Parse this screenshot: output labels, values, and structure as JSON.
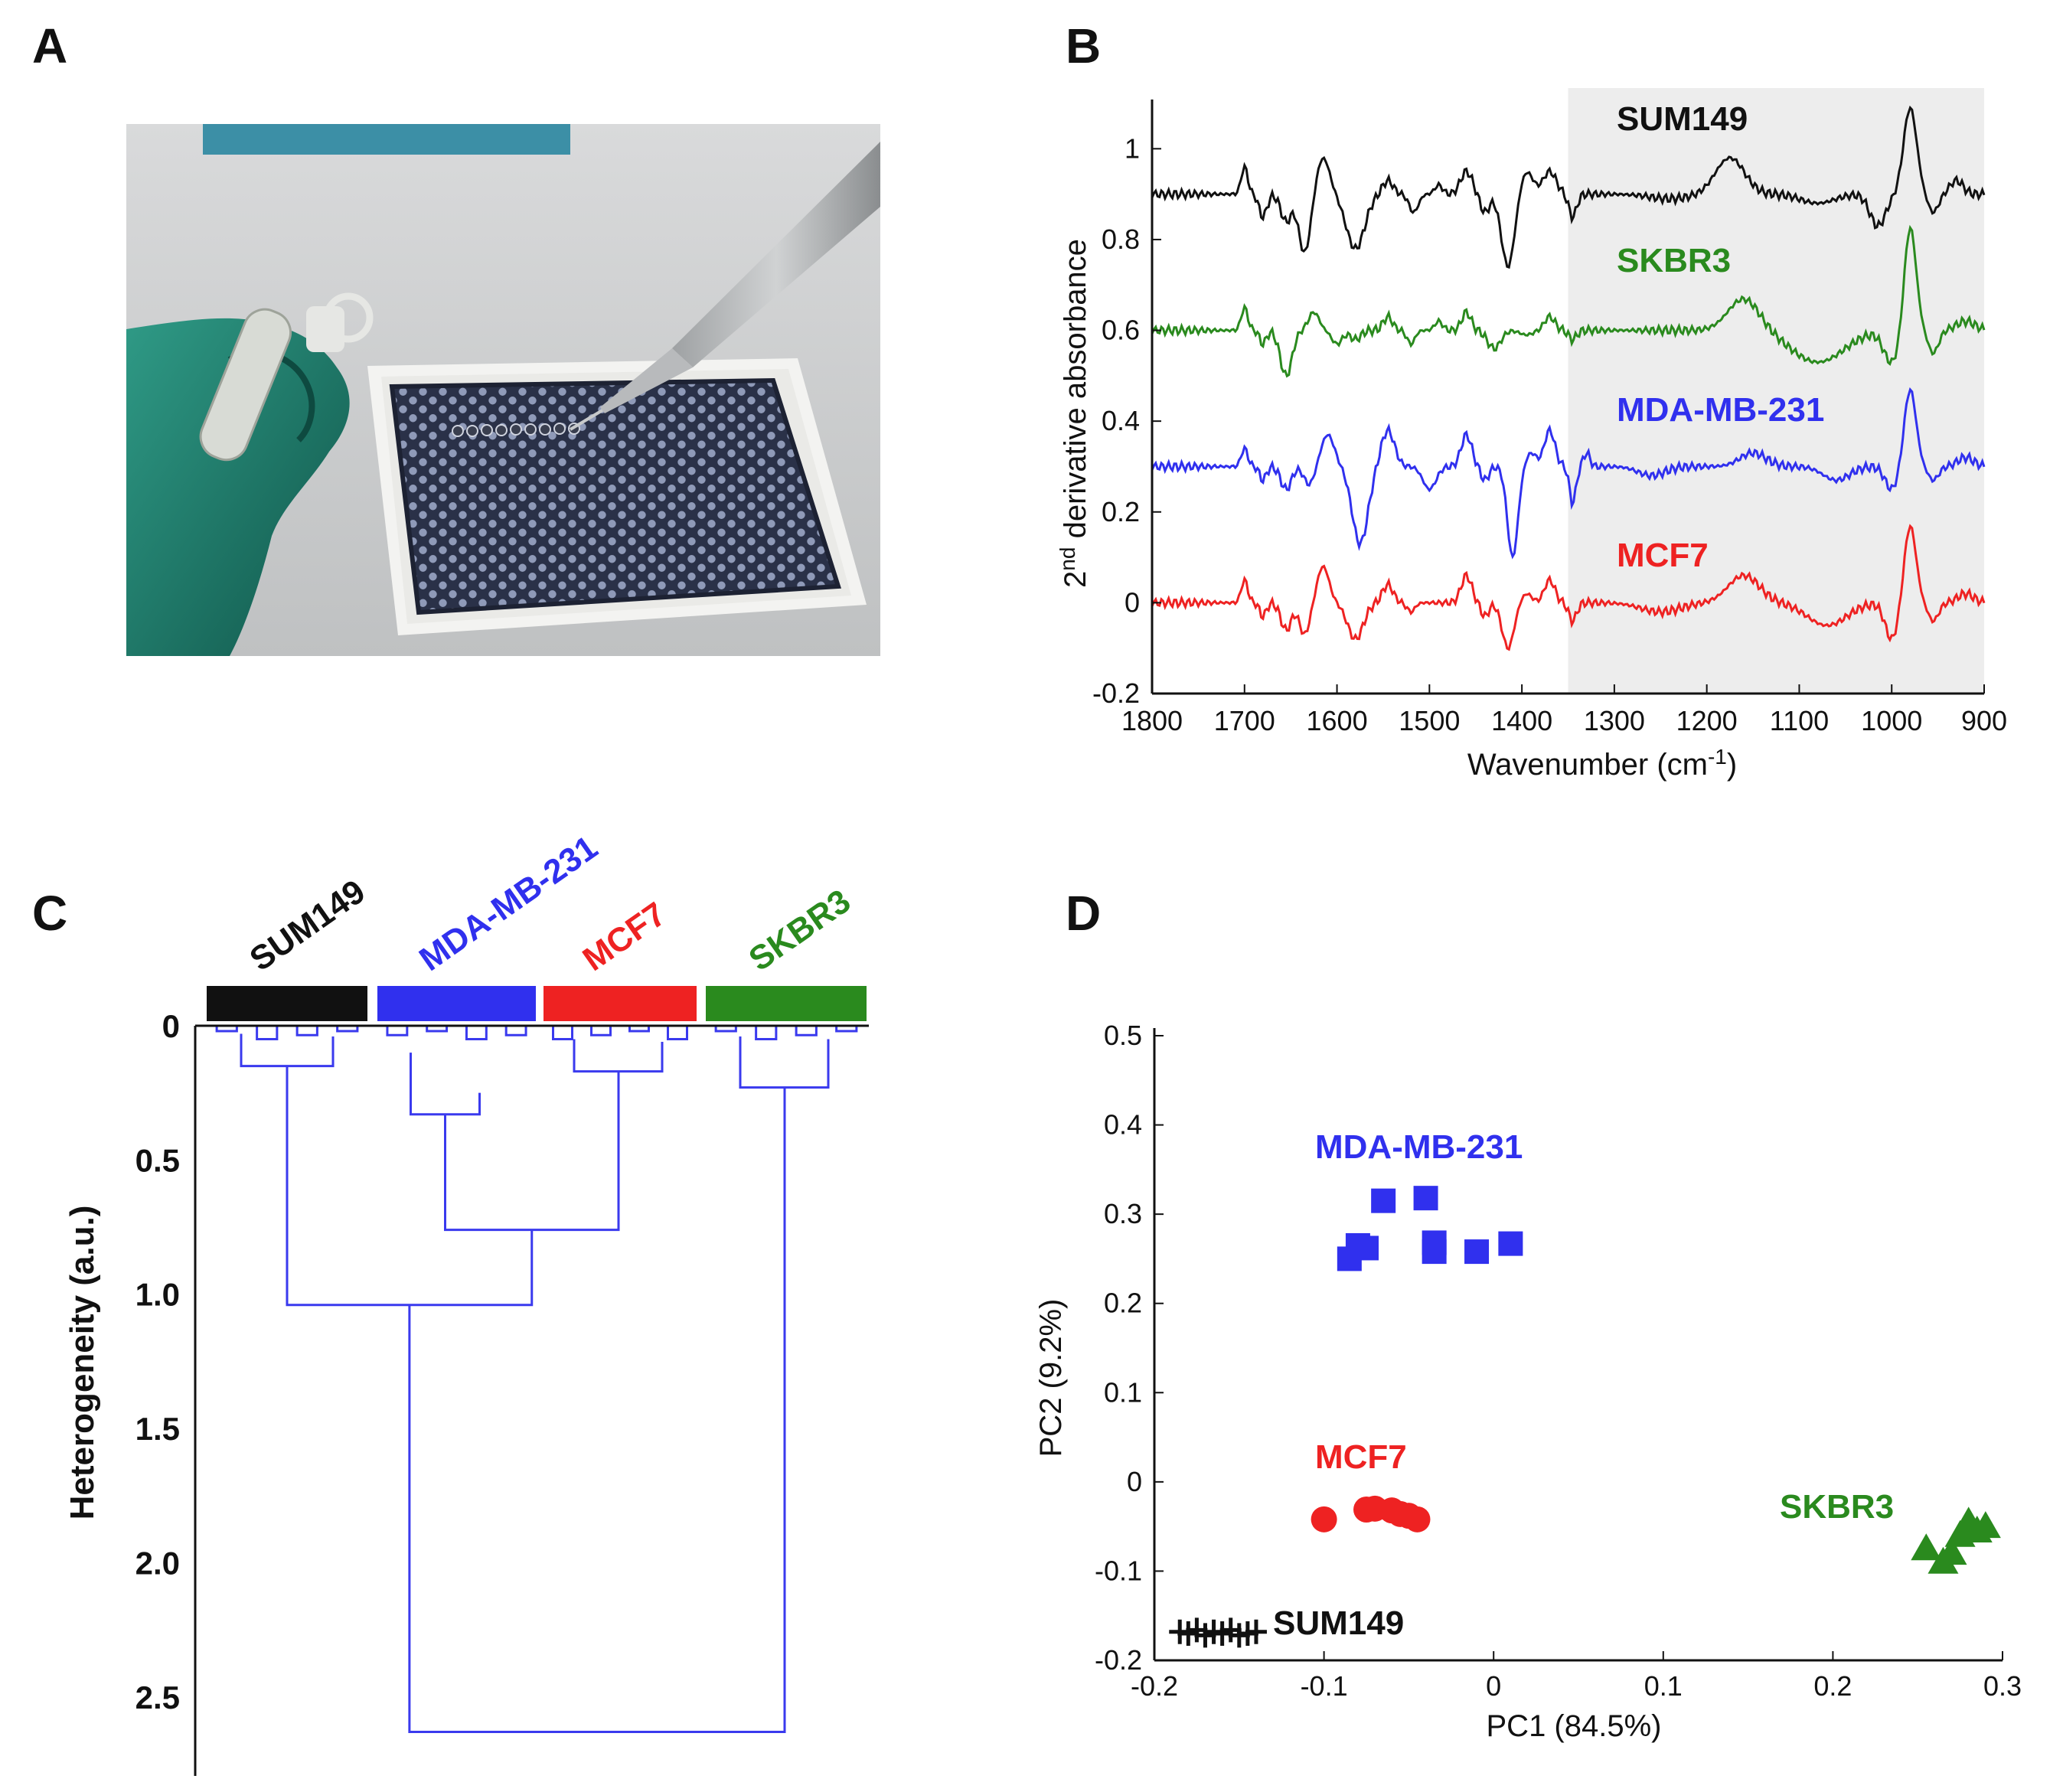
{
  "panel_labels": {
    "a": "A",
    "b": "B",
    "c": "C",
    "d": "D"
  },
  "colors": {
    "SUM149": "#111111",
    "SKBR3": "#2a8a1e",
    "MDA-MB-231": "#3030ee",
    "MCF7": "#ee2222",
    "dendrogram": "#3a3aee",
    "shade": "#ededed"
  },
  "photo": {
    "subject": "gloved hand pipetting cell samples onto a multi-well slide",
    "icons": [
      "glove-icon",
      "tube-icon",
      "pipette-icon",
      "well-slide-icon"
    ]
  },
  "chart_data": [
    {
      "id": "B",
      "type": "line",
      "xlabel": "Wavenumber (cm",
      "xlabel_sup": "-1",
      "xlabel_close": ")",
      "ylabel_pre": "2",
      "ylabel_sup": "nd",
      "ylabel_post": " derivative absorbance",
      "xlim": [
        1800,
        900
      ],
      "ylim": [
        -0.2,
        1.1
      ],
      "xticks": [
        "1800",
        "1700",
        "1600",
        "1500",
        "1400",
        "1300",
        "1200",
        "1100",
        "1000",
        "900"
      ],
      "yticks": [
        "-0.2",
        "0",
        "0.2",
        "0.4",
        "0.6",
        "0.8",
        "1"
      ],
      "shaded_region": [
        1350,
        900
      ],
      "series": [
        {
          "name": "SUM149",
          "offset": 0.9,
          "label": "SUM149"
        },
        {
          "name": "SKBR3",
          "offset": 0.6,
          "label": "SKBR3"
        },
        {
          "name": "MDA-MB-231",
          "offset": 0.3,
          "label": "MDA-MB-231"
        },
        {
          "name": "MCF7",
          "offset": 0.0,
          "label": "MCF7"
        }
      ]
    },
    {
      "id": "C",
      "type": "dendrogram",
      "ylabel": "Heterogeneity (a.u.)",
      "ylim": [
        0,
        2.7
      ],
      "yticks": [
        "0",
        "0.5",
        "1.0",
        "1.5",
        "2.0",
        "2.5"
      ],
      "groups": [
        {
          "name": "SUM149",
          "label": "SUM149"
        },
        {
          "name": "MDA-MB-231",
          "label": "MDA-MB-231"
        },
        {
          "name": "MCF7",
          "label": "MCF7"
        },
        {
          "name": "SKBR3",
          "label": "SKBR3"
        }
      ],
      "merge_heights": {
        "SUM149": 0.15,
        "MDA-MB-231": 0.33,
        "MCF7": 0.17,
        "SKBR3": 0.23,
        "MDA+MCF7": 0.76,
        "SUM+MDA+MCF7": 1.04,
        "root": 2.63
      }
    },
    {
      "id": "D",
      "type": "scatter",
      "xlabel": "PC1 (84.5%)",
      "ylabel": "PC2 (9.2%)",
      "xlim": [
        -0.2,
        0.3
      ],
      "ylim": [
        -0.2,
        0.5
      ],
      "xticks": [
        "-0.2",
        "-0.1",
        "0",
        "0.1",
        "0.2",
        "0.3"
      ],
      "yticks": [
        "-0.2",
        "-0.1",
        "0",
        "0.1",
        "0.2",
        "0.3",
        "0.4",
        "0.5"
      ],
      "series": [
        {
          "name": "MDA-MB-231",
          "marker": "square",
          "label": "MDA-MB-231",
          "x": [
            -0.085,
            -0.08,
            -0.075,
            -0.065,
            -0.04,
            -0.035,
            -0.035,
            -0.01,
            0.01
          ],
          "y": [
            0.25,
            0.265,
            0.262,
            0.315,
            0.318,
            0.268,
            0.258,
            0.258,
            0.267
          ]
        },
        {
          "name": "MCF7",
          "marker": "circle",
          "label": "MCF7",
          "x": [
            -0.1,
            -0.075,
            -0.07,
            -0.06,
            -0.055,
            -0.05,
            -0.045
          ],
          "y": [
            -0.042,
            -0.031,
            -0.03,
            -0.032,
            -0.036,
            -0.038,
            -0.042
          ]
        },
        {
          "name": "SKBR3",
          "marker": "triangle",
          "label": "SKBR3",
          "x": [
            0.255,
            0.265,
            0.27,
            0.275,
            0.28,
            0.285,
            0.29
          ],
          "y": [
            -0.075,
            -0.09,
            -0.08,
            -0.06,
            -0.045,
            -0.055,
            -0.05
          ]
        },
        {
          "name": "SUM149",
          "marker": "plus",
          "label": "SUM149",
          "x": [
            -0.185,
            -0.18,
            -0.175,
            -0.17,
            -0.165,
            -0.16,
            -0.155,
            -0.15,
            -0.145,
            -0.14
          ],
          "y": [
            -0.168,
            -0.17,
            -0.166,
            -0.172,
            -0.168,
            -0.17,
            -0.166,
            -0.172,
            -0.17,
            -0.168
          ]
        }
      ]
    }
  ]
}
